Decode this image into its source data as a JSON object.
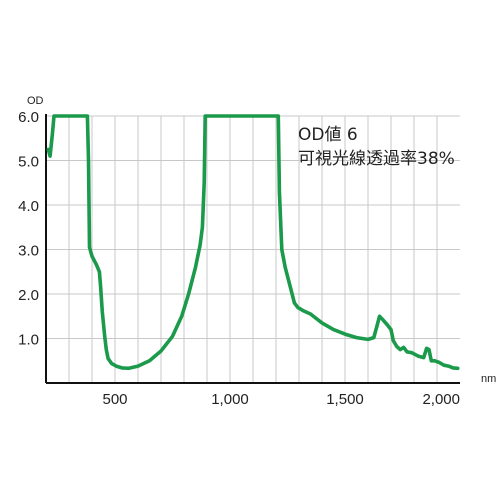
{
  "chart_data": {
    "type": "line",
    "ylabel": "OD",
    "xlabel": "nm",
    "xlim": [
      200,
      2000
    ],
    "ylim": [
      0,
      6.0
    ],
    "x_ticks": [
      {
        "value": 500,
        "label": "500"
      },
      {
        "value": 1000,
        "label": "1,000"
      },
      {
        "value": 1500,
        "label": "1,500"
      },
      {
        "value": 2000,
        "label": "2,000"
      }
    ],
    "y_ticks": [
      {
        "value": 1.0,
        "label": "1.0"
      },
      {
        "value": 2.0,
        "label": "2.0"
      },
      {
        "value": 3.0,
        "label": "3.0"
      },
      {
        "value": 4.0,
        "label": "4.0"
      },
      {
        "value": 5.0,
        "label": "5.0"
      },
      {
        "value": 6.0,
        "label": "6.0"
      }
    ],
    "x_gridlines": [
      300,
      400,
      500,
      600,
      700,
      800,
      900,
      1000,
      1100,
      1200,
      1300,
      1400,
      1500,
      1600,
      1700,
      1800,
      1900
    ],
    "y_gridlines": [
      1.0,
      2.0,
      3.0,
      4.0,
      5.0,
      6.0
    ],
    "grid": true,
    "annotations": [
      "OD値 6",
      "可視光線透過率38%"
    ],
    "series": [
      {
        "color": "#1a9a4a",
        "points": [
          [
            210,
            5.25
          ],
          [
            218,
            5.1
          ],
          [
            228,
            5.6
          ],
          [
            235,
            6.0
          ],
          [
            380,
            6.0
          ],
          [
            385,
            5.0
          ],
          [
            389,
            3.05
          ],
          [
            400,
            2.85
          ],
          [
            420,
            2.65
          ],
          [
            432,
            2.5
          ],
          [
            437,
            2.2
          ],
          [
            445,
            1.6
          ],
          [
            455,
            1.05
          ],
          [
            462,
            0.75
          ],
          [
            470,
            0.55
          ],
          [
            485,
            0.44
          ],
          [
            505,
            0.38
          ],
          [
            530,
            0.34
          ],
          [
            560,
            0.33
          ],
          [
            600,
            0.38
          ],
          [
            650,
            0.5
          ],
          [
            700,
            0.72
          ],
          [
            750,
            1.05
          ],
          [
            790,
            1.5
          ],
          [
            820,
            2.0
          ],
          [
            850,
            2.6
          ],
          [
            870,
            3.1
          ],
          [
            880,
            3.5
          ],
          [
            888,
            4.5
          ],
          [
            892,
            6.0
          ],
          [
            1210,
            6.0
          ],
          [
            1215,
            4.3
          ],
          [
            1225,
            3.0
          ],
          [
            1240,
            2.6
          ],
          [
            1260,
            2.2
          ],
          [
            1280,
            1.8
          ],
          [
            1295,
            1.7
          ],
          [
            1320,
            1.62
          ],
          [
            1350,
            1.55
          ],
          [
            1400,
            1.35
          ],
          [
            1450,
            1.2
          ],
          [
            1500,
            1.1
          ],
          [
            1550,
            1.02
          ],
          [
            1600,
            0.98
          ],
          [
            1625,
            1.02
          ],
          [
            1640,
            1.3
          ],
          [
            1650,
            1.5
          ],
          [
            1665,
            1.42
          ],
          [
            1685,
            1.3
          ],
          [
            1700,
            1.2
          ],
          [
            1710,
            0.95
          ],
          [
            1725,
            0.82
          ],
          [
            1740,
            0.75
          ],
          [
            1755,
            0.8
          ],
          [
            1770,
            0.7
          ],
          [
            1790,
            0.68
          ],
          [
            1820,
            0.6
          ],
          [
            1842,
            0.57
          ],
          [
            1855,
            0.78
          ],
          [
            1865,
            0.75
          ],
          [
            1875,
            0.5
          ],
          [
            1890,
            0.5
          ],
          [
            1910,
            0.46
          ],
          [
            1930,
            0.4
          ],
          [
            1950,
            0.38
          ],
          [
            1970,
            0.34
          ],
          [
            1990,
            0.33
          ]
        ]
      }
    ]
  }
}
